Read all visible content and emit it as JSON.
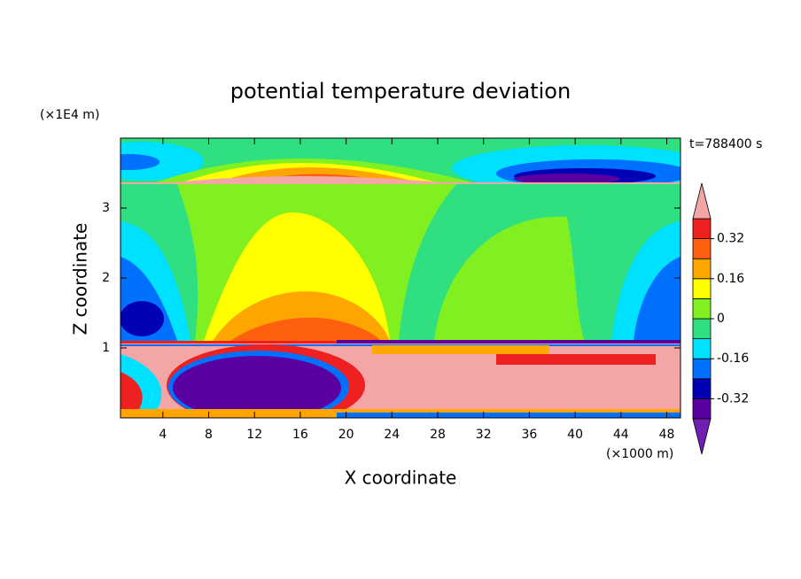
{
  "chart_data": {
    "type": "contour",
    "title": "potential temperature deviation",
    "x_label": "X coordinate",
    "y_label": "Z coordinate",
    "x_unit": "(×1000 m)",
    "y_unit": "(×1E4 m)",
    "annotation": "t=788400 s",
    "xlim": [
      0.3,
      49.2
    ],
    "xticks": [
      4,
      8,
      12,
      16,
      20,
      24,
      28,
      32,
      36,
      40,
      44,
      48
    ],
    "ylim": [
      0,
      4
    ],
    "yticks": [
      1,
      2,
      3
    ],
    "colorbar": {
      "levels": [
        -0.4,
        -0.32,
        -0.24,
        -0.16,
        -0.08,
        0,
        0.08,
        0.16,
        0.24,
        0.32,
        0.4
      ],
      "colors": [
        "#5a00a0",
        "#0000b4",
        "#0070ff",
        "#00e0ff",
        "#30e080",
        "#80f020",
        "#ffff00",
        "#ffa500",
        "#ff6010",
        "#ee2020"
      ],
      "under_color": "#7020b0",
      "over_color": "#f4a6a6",
      "ticks": [
        -0.32,
        -0.16,
        0,
        0.16,
        0.32
      ]
    }
  }
}
